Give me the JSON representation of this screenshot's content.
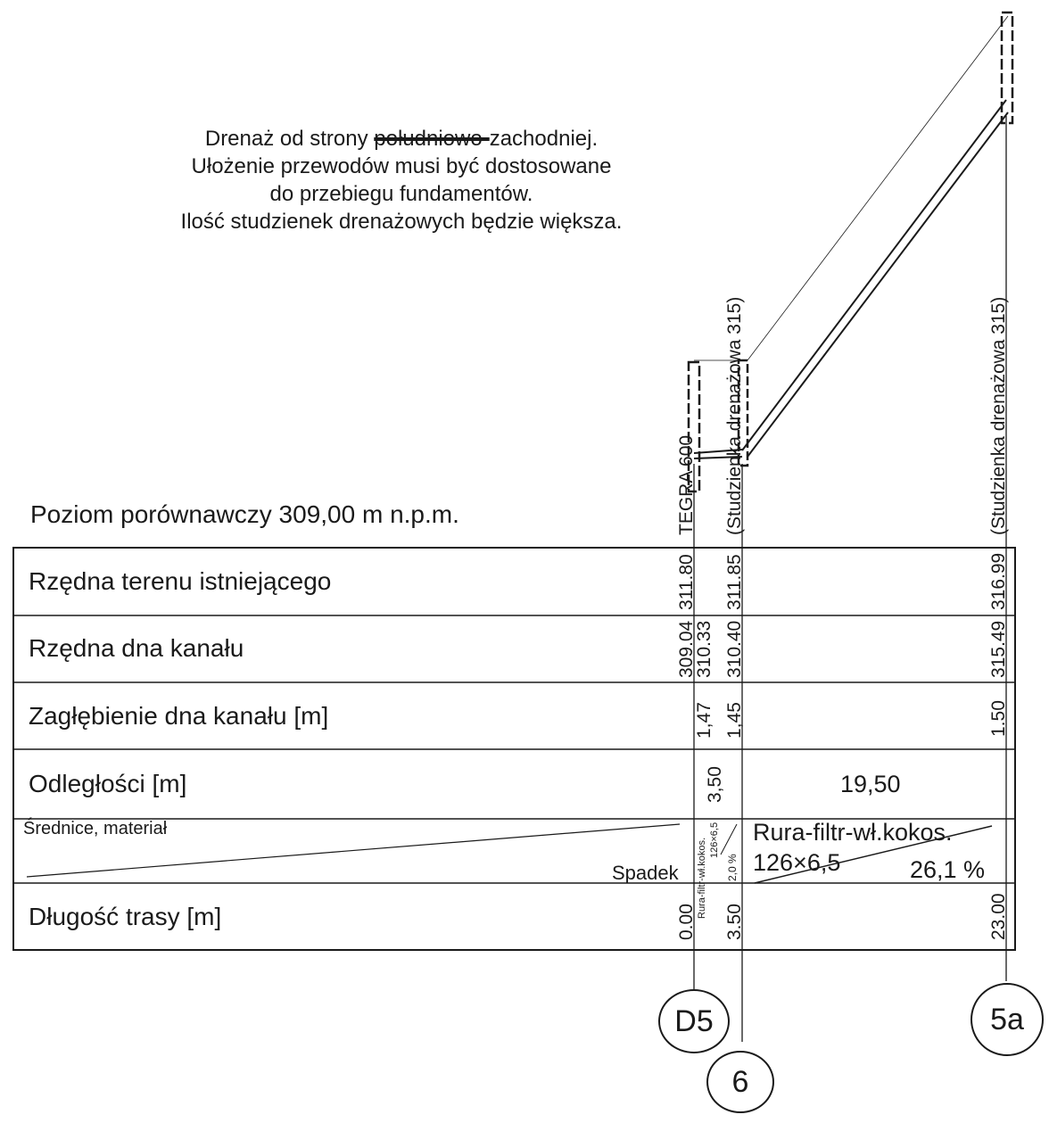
{
  "note": {
    "line1_before": "Drenaż od strony ",
    "line1_struck": "południowo-",
    "line1_after": "zachodniej.",
    "line2": "Ułożenie przewodów  musi być dostosowane",
    "line3": "do przebiegu fundamentów.",
    "line4": "Ilość studzienek drenażowych  będzie  większa."
  },
  "reference_level": "Poziom porównawczy 309,00 m n.p.m.",
  "rows": {
    "terrain": "Rzędna terenu istniejącego",
    "bottom": "Rzędna dna kanału",
    "depth": "Zagłębienie dna kanału [m]",
    "distances": "Odległości [m]",
    "diameters": "Średnice, materiał",
    "slope": "Spadek",
    "length": "Długość trasy [m]"
  },
  "structures": {
    "tegra": "TEGRA 600",
    "well6": "(Studzienka drenażowa 315)",
    "well5a": "(Studzienka drenażowa 315)"
  },
  "values": {
    "terrain_d5": "311.80",
    "terrain_6": "311.85",
    "terrain_5a": "316.99",
    "bottom_d5_a": "309.04",
    "bottom_d5_b": "310.33",
    "bottom_6": "310.40",
    "bottom_5a": "315.49",
    "depth_d5": "1,47",
    "depth_6": "1,45",
    "depth_5a": "1.50",
    "dist_short": "3,50",
    "dist_long": "19,50",
    "pipe_short_1": "Rura-filtr-wł.kokos.",
    "pipe_short_2": "126×6,5",
    "slope_short": "2,0 %",
    "pipe_long_1": "Rura-filtr-wł.kokos.",
    "pipe_long_2": "126×6,5",
    "slope_long": "26,1 %",
    "len_d5": "0.00",
    "len_6": "3.50",
    "len_5a": "23.00"
  },
  "nodes": {
    "d5": "D5",
    "n6": "6",
    "n5a": "5a"
  }
}
